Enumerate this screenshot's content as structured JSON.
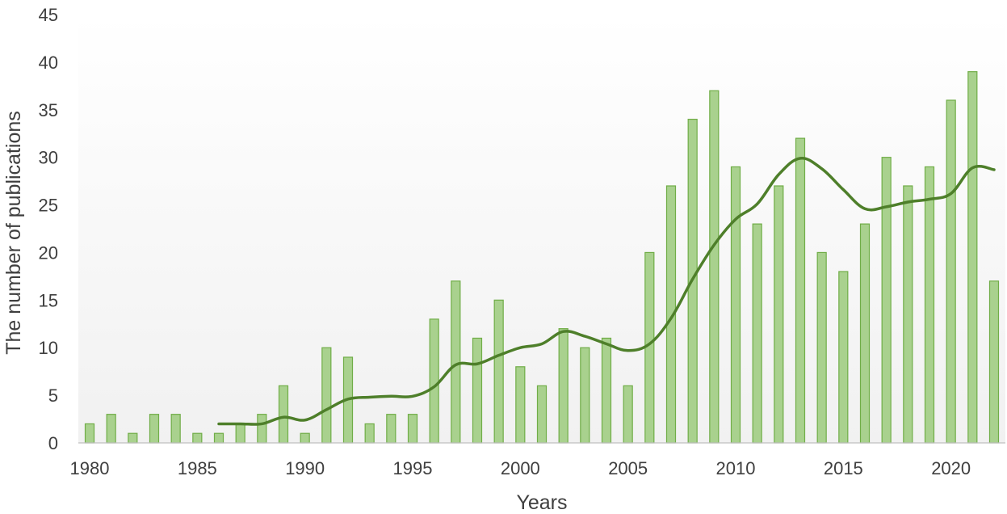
{
  "chart_data": {
    "type": "bar",
    "title": "",
    "xlabel": "Years",
    "ylabel": "The number of publications",
    "ylim": [
      0,
      45
    ],
    "yticks": [
      "0",
      "5",
      "10",
      "15",
      "20",
      "25",
      "30",
      "35",
      "40",
      "45"
    ],
    "xticks": [
      "1980",
      "1985",
      "1990",
      "1995",
      "2000",
      "2005",
      "2010",
      "2015",
      "2020"
    ],
    "categories": [
      1980,
      1981,
      1982,
      1983,
      1984,
      1985,
      1986,
      1987,
      1988,
      1989,
      1990,
      1991,
      1992,
      1993,
      1994,
      1995,
      1996,
      1997,
      1998,
      1999,
      2000,
      2001,
      2002,
      2003,
      2004,
      2005,
      2006,
      2007,
      2008,
      2009,
      2010,
      2011,
      2012,
      2013,
      2014,
      2015,
      2016,
      2017,
      2018,
      2019,
      2020,
      2021,
      2022
    ],
    "series": [
      {
        "type": "bar",
        "values": [
          2,
          3,
          1,
          3,
          3,
          1,
          1,
          2,
          3,
          6,
          1,
          10,
          9,
          2,
          3,
          3,
          13,
          17,
          11,
          15,
          8,
          6,
          12,
          10,
          11,
          6,
          20,
          27,
          34,
          37,
          29,
          23,
          27,
          32,
          20,
          18,
          23,
          30,
          27,
          29,
          36,
          39,
          17
        ],
        "color": "#a9d18e"
      },
      {
        "type": "line",
        "x": [
          1986,
          1987,
          1988,
          1989,
          1990,
          1991,
          1992,
          1993,
          1994,
          1995,
          1996,
          1997,
          1998,
          1999,
          2000,
          2001,
          2002,
          2003,
          2004,
          2005,
          2006,
          2007,
          2008,
          2009,
          2010,
          2011,
          2012,
          2013,
          2014,
          2015,
          2016,
          2017,
          2018,
          2019,
          2020,
          2021,
          2022
        ],
        "values": [
          2.0,
          2.0,
          2.0,
          2.7,
          2.4,
          3.5,
          4.6,
          4.8,
          4.9,
          4.9,
          5.9,
          8.2,
          8.3,
          9.2,
          10.0,
          10.4,
          11.7,
          11.2,
          10.4,
          9.7,
          10.4,
          13.1,
          17.2,
          20.8,
          23.5,
          25.1,
          28.2,
          29.9,
          28.8,
          26.6,
          24.6,
          24.8,
          25.3,
          25.6,
          26.2,
          28.9,
          28.7
        ],
        "color": "#4e7f2a"
      }
    ],
    "grid": false,
    "background_gradient": [
      "#ffffff",
      "#f1f1f1"
    ]
  }
}
